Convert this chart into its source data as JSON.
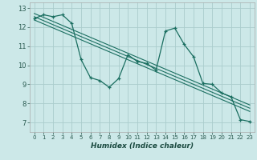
{
  "title": "",
  "xlabel": "Humidex (Indice chaleur)",
  "bg_color": "#cce8e8",
  "grid_color": "#aacccc",
  "line_color": "#1a6e60",
  "xlim": [
    -0.5,
    23.5
  ],
  "ylim": [
    6.5,
    13.3
  ],
  "yticks": [
    7,
    8,
    9,
    10,
    11,
    12,
    13
  ],
  "xticks": [
    0,
    1,
    2,
    3,
    4,
    5,
    6,
    7,
    8,
    9,
    10,
    11,
    12,
    13,
    14,
    15,
    16,
    17,
    18,
    19,
    20,
    21,
    22,
    23
  ],
  "series1_x": [
    0,
    1,
    2,
    3,
    4,
    5,
    6,
    7,
    8,
    9,
    10,
    11,
    12,
    13,
    14,
    15,
    16,
    17,
    18,
    19,
    20,
    21,
    22,
    23
  ],
  "series1_y": [
    12.45,
    12.65,
    12.55,
    12.65,
    12.2,
    10.3,
    9.35,
    9.2,
    8.85,
    9.3,
    10.55,
    10.2,
    10.1,
    9.75,
    11.8,
    11.95,
    11.1,
    10.45,
    9.05,
    9.0,
    8.55,
    8.35,
    7.15,
    7.05
  ],
  "regression_lines": [
    {
      "x0": 0,
      "y0": 12.72,
      "x1": 23,
      "y1": 7.92
    },
    {
      "x0": 0,
      "y0": 12.55,
      "x1": 23,
      "y1": 7.75
    },
    {
      "x0": 0,
      "y0": 12.38,
      "x1": 23,
      "y1": 7.58
    }
  ]
}
